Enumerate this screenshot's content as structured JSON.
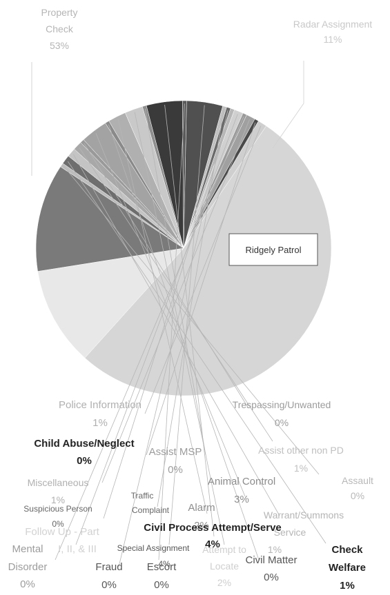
{
  "chart_data": {
    "type": "pie",
    "title": "",
    "center_badge": "Ridgely Patrol",
    "slices": [
      {
        "label": "Property Check",
        "value": 53,
        "value_text": "53%",
        "color": "#d6d6d6",
        "label_color": "#b5b5b5",
        "bold": false
      },
      {
        "label": "Radar Assignment",
        "value": 11,
        "value_text": "11%",
        "color": "#e8e8e8",
        "label_color": "#c8c8c8",
        "bold": false
      },
      {
        "label": "Ridgely Patrol",
        "value": 12,
        "value_text": "",
        "color": "#7a7a7a",
        "label_color": "#333333",
        "bold": false
      },
      {
        "label": "Assault",
        "value": 0,
        "value_text": "0%",
        "color": "#bdbdbd",
        "label_color": "#b8b8b8",
        "bold": false
      },
      {
        "label": "Check Welfare",
        "value": 1,
        "value_text": "1%",
        "color": "#6e6e6e",
        "label_color": "#222222",
        "bold": true
      },
      {
        "label": "Warrant/Summons Service",
        "value": 1,
        "value_text": "1%",
        "color": "#c4c4c4",
        "label_color": "#b5b5b5",
        "bold": false
      },
      {
        "label": "Assist other non PD",
        "value": 1,
        "value_text": "1%",
        "color": "#a8a8a8",
        "label_color": "#c0c0c0",
        "bold": false
      },
      {
        "label": "Trespassing/Unwanted",
        "value": 0,
        "value_text": "0%",
        "color": "#9a9a9a",
        "label_color": "#9c9c9c",
        "bold": false
      },
      {
        "label": "Animal Control",
        "value": 3,
        "value_text": "3%",
        "color": "#a3a3a3",
        "label_color": "#8c8c8c",
        "bold": false
      },
      {
        "label": "Civil Matter",
        "value": 0,
        "value_text": "0%",
        "color": "#8a8a8a",
        "label_color": "#555555",
        "bold": false
      },
      {
        "label": "Alarm",
        "value": 2,
        "value_text": "2%",
        "color": "#b0b0b0",
        "label_color": "#8c8c8c",
        "bold": false
      },
      {
        "label": "Attempt to Locate",
        "value": 2,
        "value_text": "2%",
        "color": "#c9c9c9",
        "label_color": "#cfcfcf",
        "bold": false
      },
      {
        "label": "Assist MSP",
        "value": 0,
        "value_text": "0%",
        "color": "#8e8e8e",
        "label_color": "#9c9c9c",
        "bold": false
      },
      {
        "label": "Civil Process Attempt/Serve",
        "value": 4,
        "value_text": "4%",
        "color": "#3a3a3a",
        "label_color": "#222222",
        "bold": true
      },
      {
        "label": "Escort",
        "value": 0,
        "value_text": "0%",
        "color": "#5a5a5a",
        "label_color": "#555555",
        "bold": false
      },
      {
        "label": "Special Assignment",
        "value": 4,
        "value_text": "4%",
        "color": "#505050",
        "label_color": "#555555",
        "bold": false
      },
      {
        "label": "Traffic Complaint",
        "value": 0,
        "value_text": "",
        "color": "#c0c0c0",
        "label_color": "#666666",
        "bold": false
      },
      {
        "label": "Fraud",
        "value": 0,
        "value_text": "0%",
        "color": "#6a6a6a",
        "label_color": "#555555",
        "bold": false
      },
      {
        "label": "Suspicious Person",
        "value": 0,
        "value_text": "0%",
        "color": "#b8b8b8",
        "label_color": "#666666",
        "bold": false
      },
      {
        "label": "Follow Up - Part I, II, & III",
        "value": 1,
        "value_text": "",
        "color": "#d0d0d0",
        "label_color": "#d2d2d2",
        "bold": false
      },
      {
        "label": "Mental Disorder",
        "value": 0,
        "value_text": "0%",
        "color": "#9a9a9a",
        "label_color": "#9c9c9c",
        "bold": false
      },
      {
        "label": "Miscellaneous",
        "value": 1,
        "value_text": "1%",
        "color": "#a0a0a0",
        "label_color": "#b0b0b0",
        "bold": false
      },
      {
        "label": "Child Abuse/Neglect",
        "value": 0,
        "value_text": "0%",
        "color": "#4a4a4a",
        "label_color": "#222222",
        "bold": true
      },
      {
        "label": "Police Information",
        "value": 1,
        "value_text": "1%",
        "color": "#cfcfcf",
        "label_color": "#b0b0b0",
        "bold": false
      }
    ]
  }
}
